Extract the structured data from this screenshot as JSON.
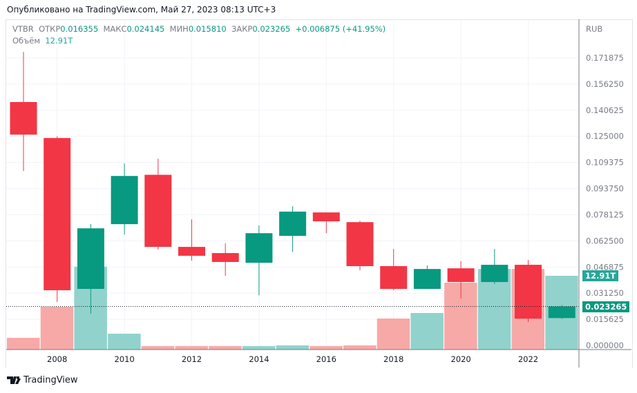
{
  "published": "Опубликовано на TradingView.com, Май 27, 2023 08:13 UTC+3",
  "legend": {
    "symbol": "VTBR",
    "open_label": "ОТКР",
    "open": "0.016355",
    "high_label": "МАКС",
    "high": "0.024145",
    "low_label": "МИН",
    "low": "0.015810",
    "close_label": "ЗАКР",
    "close": "0.023265",
    "change": "+0.006875 (+41.95%)",
    "volume_label": "Объём",
    "volume": "12.91T"
  },
  "currency": "RUB",
  "price_ticks": [
    "0.171875",
    "0.156250",
    "0.140625",
    "0.125000",
    "0.109375",
    "0.093750",
    "0.078125",
    "0.062500",
    "0.046875",
    "0.031250",
    "0.015625",
    "0.000000"
  ],
  "year_ticks": [
    "2008",
    "2010",
    "2012",
    "2014",
    "2016",
    "2018",
    "2020",
    "2022"
  ],
  "last_price_badge": "0.023265",
  "volume_badge": "12.91T",
  "logo": "TradingView",
  "colors": {
    "up": "#089981",
    "down": "#f23645",
    "vol_up": "#92d2cc",
    "vol_down": "#f7a9a7"
  },
  "chart_data": {
    "type": "candlestick",
    "interval": "12M",
    "ylim": [
      0,
      0.171875
    ],
    "candles": [
      {
        "year": 2007,
        "o": 0.1455,
        "h": 0.1755,
        "l": 0.1043,
        "c": 0.126,
        "vol": 2.05
      },
      {
        "year": 2008,
        "o": 0.124,
        "h": 0.125,
        "l": 0.026,
        "c": 0.033,
        "vol": 7.48
      },
      {
        "year": 2009,
        "o": 0.0338,
        "h": 0.0725,
        "l": 0.019,
        "c": 0.07,
        "vol": 14.5
      },
      {
        "year": 2010,
        "o": 0.0725,
        "h": 0.1088,
        "l": 0.0663,
        "c": 0.1013,
        "vol": 2.78
      },
      {
        "year": 2011,
        "o": 0.102,
        "h": 0.1116,
        "l": 0.0573,
        "c": 0.0589,
        "vol": 0.6
      },
      {
        "year": 2012,
        "o": 0.0589,
        "h": 0.0754,
        "l": 0.0507,
        "c": 0.0536,
        "vol": 0.6
      },
      {
        "year": 2013,
        "o": 0.0552,
        "h": 0.061,
        "l": 0.0416,
        "c": 0.0499,
        "vol": 0.6
      },
      {
        "year": 2014,
        "o": 0.0494,
        "h": 0.0717,
        "l": 0.03,
        "c": 0.0671,
        "vol": 0.6
      },
      {
        "year": 2015,
        "o": 0.0655,
        "h": 0.0832,
        "l": 0.056,
        "c": 0.08,
        "vol": 0.72
      },
      {
        "year": 2016,
        "o": 0.0795,
        "h": 0.0795,
        "l": 0.0671,
        "c": 0.0742,
        "vol": 0.6
      },
      {
        "year": 2017,
        "o": 0.0737,
        "h": 0.0746,
        "l": 0.0449,
        "c": 0.0474,
        "vol": 0.72
      },
      {
        "year": 2018,
        "o": 0.0474,
        "h": 0.0577,
        "l": 0.033,
        "c": 0.0338,
        "vol": 5.43
      },
      {
        "year": 2019,
        "o": 0.0338,
        "h": 0.0478,
        "l": 0.0338,
        "c": 0.0457,
        "vol": 6.4
      },
      {
        "year": 2020,
        "o": 0.0461,
        "h": 0.0503,
        "l": 0.028,
        "c": 0.0379,
        "vol": 11.7
      },
      {
        "year": 2021,
        "o": 0.0379,
        "h": 0.0577,
        "l": 0.0367,
        "c": 0.0482,
        "vol": 14.1
      },
      {
        "year": 2022,
        "o": 0.0482,
        "h": 0.0511,
        "l": 0.014,
        "c": 0.016,
        "vol": 14.1
      },
      {
        "year": 2023,
        "o": 0.016355,
        "h": 0.024145,
        "l": 0.01581,
        "c": 0.023265,
        "vol": 12.91
      }
    ]
  }
}
